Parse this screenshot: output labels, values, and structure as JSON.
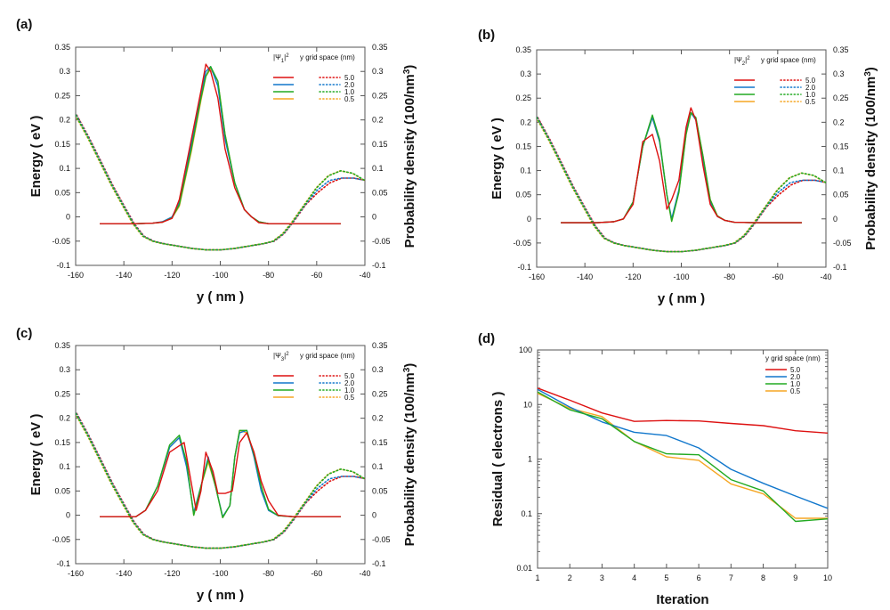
{
  "colors": {
    "red": "#dd1111",
    "blue": "#1177cc",
    "green": "#22aa22",
    "orange": "#f5a623",
    "axis": "#555555",
    "text": "#111111"
  },
  "chart_data": [
    {
      "panel": "(a)",
      "type": "line",
      "xlabel": "y ( nm )",
      "ylabel": "Energy ( eV )",
      "y2label_main": "Probability density (100/nm",
      "y2label_sup": "3",
      "y2label_end": ")",
      "xlim": [
        -160,
        -40
      ],
      "ylim": [
        -0.1,
        0.35
      ],
      "xticks": [
        -160,
        -140,
        -120,
        -100,
        -80,
        -60,
        -40
      ],
      "yticks": [
        -0.1,
        -0.05,
        0,
        0.05,
        0.1,
        0.15,
        0.2,
        0.25,
        0.3,
        0.35
      ],
      "ytick_labels": [
        "-0.1",
        "-0.05",
        "0",
        "0.05",
        "0.1",
        "0.15",
        "0.2",
        "0.25",
        "0.3",
        "0.35"
      ],
      "legend_psi_pre": "|Ψ",
      "legend_psi_sub": "1",
      "legend_psi_post": "|",
      "legend_psi_sup": "2",
      "legend_title": "y grid space (nm)",
      "legend_labels": [
        "5.0",
        "2.0",
        "1.0",
        "0.5"
      ],
      "series": [
        {
          "name": "5.0",
          "color": "red",
          "x": [
            -150,
            -135,
            -128,
            -124,
            -120,
            -117,
            -112,
            -108,
            -106,
            -104,
            -101,
            -98,
            -94,
            -90,
            -87,
            -84,
            -80,
            -70,
            -50
          ],
          "y": [
            -0.014,
            -0.014,
            -0.013,
            -0.011,
            -0.003,
            0.036,
            0.16,
            0.26,
            0.315,
            0.3,
            0.245,
            0.14,
            0.06,
            0.015,
            0.0,
            -0.012,
            -0.014,
            -0.014,
            -0.014
          ]
        },
        {
          "name": "2.0",
          "color": "blue",
          "x": [
            -150,
            -135,
            -128,
            -124,
            -120,
            -117,
            -112,
            -108,
            -106,
            -104,
            -101,
            -98,
            -94,
            -90,
            -87,
            -84,
            -80,
            -70,
            -50
          ],
          "y": [
            -0.014,
            -0.014,
            -0.013,
            -0.01,
            0.0,
            0.03,
            0.15,
            0.255,
            0.3,
            0.31,
            0.27,
            0.16,
            0.07,
            0.015,
            0.0,
            -0.01,
            -0.014,
            -0.014,
            -0.014
          ]
        },
        {
          "name": "1.0",
          "color": "green",
          "x": [
            -150,
            -135,
            -128,
            -124,
            -120,
            -117,
            -112,
            -108,
            -106,
            -104,
            -101,
            -98,
            -94,
            -90,
            -87,
            -84,
            -80,
            -70,
            -50
          ],
          "y": [
            -0.014,
            -0.014,
            -0.013,
            -0.011,
            -0.002,
            0.025,
            0.14,
            0.245,
            0.29,
            0.31,
            0.28,
            0.17,
            0.07,
            0.015,
            0.0,
            -0.01,
            -0.014,
            -0.014,
            -0.014
          ]
        },
        {
          "name": "0.5",
          "color": "orange",
          "x": [
            -150,
            -135,
            -128,
            -124,
            -120,
            -117,
            -112,
            -108,
            -106,
            -104,
            -101,
            -98,
            -94,
            -90,
            -87,
            -84,
            -80,
            -70,
            -50
          ],
          "y": [
            -0.014,
            -0.014,
            -0.013,
            -0.011,
            -0.002,
            0.022,
            0.135,
            0.24,
            0.29,
            0.305,
            0.28,
            0.17,
            0.07,
            0.015,
            0.0,
            -0.01,
            -0.014,
            -0.014,
            -0.014
          ]
        }
      ],
      "potential": {
        "x": [
          -160,
          -155,
          -150,
          -145,
          -140,
          -136,
          -132,
          -128,
          -124,
          -118,
          -112,
          -106,
          -100,
          -94,
          -88,
          -82,
          -78,
          -74,
          -70,
          -65,
          -60,
          -55,
          -50,
          -45,
          -40
        ],
        "y_main": [
          0.21,
          0.165,
          0.115,
          0.065,
          0.02,
          -0.015,
          -0.04,
          -0.05,
          -0.055,
          -0.06,
          -0.065,
          -0.068,
          -0.068,
          -0.065,
          -0.06,
          -0.055,
          -0.05,
          -0.035,
          -0.01,
          0.025,
          0.06,
          0.085,
          0.095,
          0.09,
          0.075
        ],
        "y_blue_end": [
          0.055,
          0.075,
          0.08,
          0.08,
          0.075
        ],
        "y_red_end": [
          0.05,
          0.07,
          0.08,
          0.08,
          0.075
        ]
      }
    },
    {
      "panel": "(b)",
      "type": "line",
      "xlabel": "y ( nm )",
      "ylabel": "Energy ( eV )",
      "y2label_main": "Probability density (100/nm",
      "y2label_sup": "3",
      "y2label_end": ")",
      "xlim": [
        -160,
        -40
      ],
      "ylim": [
        -0.1,
        0.35
      ],
      "xticks": [
        -160,
        -140,
        -120,
        -100,
        -80,
        -60,
        -40
      ],
      "yticks": [
        -0.1,
        -0.05,
        0,
        0.05,
        0.1,
        0.15,
        0.2,
        0.25,
        0.3,
        0.35
      ],
      "ytick_labels": [
        "-0.1",
        "-0.05",
        "0",
        "0.05",
        "0.1",
        "0.15",
        "0.2",
        "0.25",
        "0.3",
        "0.35"
      ],
      "legend_psi_pre": "|Ψ",
      "legend_psi_sub": "2",
      "legend_psi_post": "|",
      "legend_psi_sup": "2",
      "legend_title": "y grid space (nm)",
      "legend_labels": [
        "5.0",
        "2.0",
        "1.0",
        "0.5"
      ],
      "series": [
        {
          "name": "5.0",
          "color": "red",
          "x": [
            -150,
            -135,
            -128,
            -124,
            -120,
            -116,
            -112,
            -109,
            -106,
            -104,
            -101,
            -98,
            -96,
            -94,
            -91,
            -88,
            -85,
            -82,
            -78,
            -70,
            -50
          ],
          "y": [
            -0.008,
            -0.008,
            -0.006,
            0.0,
            0.03,
            0.16,
            0.175,
            0.12,
            0.02,
            0.04,
            0.08,
            0.19,
            0.23,
            0.205,
            0.11,
            0.03,
            0.005,
            -0.003,
            -0.007,
            -0.008,
            -0.008
          ]
        },
        {
          "name": "2.0",
          "color": "blue",
          "x": [
            -150,
            -135,
            -128,
            -124,
            -120,
            -116,
            -112,
            -109,
            -106,
            -104,
            -101,
            -98,
            -96,
            -94,
            -91,
            -88,
            -85,
            -82,
            -78,
            -70,
            -50
          ],
          "y": [
            -0.008,
            -0.008,
            -0.006,
            0.0,
            0.035,
            0.15,
            0.21,
            0.16,
            0.05,
            0.0,
            0.06,
            0.18,
            0.22,
            0.205,
            0.12,
            0.035,
            0.005,
            -0.003,
            -0.007,
            -0.008,
            -0.008
          ]
        },
        {
          "name": "1.0",
          "color": "green",
          "x": [
            -150,
            -135,
            -128,
            -124,
            -120,
            -116,
            -112,
            -109,
            -106,
            -104,
            -101,
            -98,
            -96,
            -94,
            -91,
            -88,
            -85,
            -82,
            -78,
            -70,
            -50
          ],
          "y": [
            -0.008,
            -0.008,
            -0.006,
            0.0,
            0.035,
            0.15,
            0.215,
            0.165,
            0.05,
            -0.005,
            0.055,
            0.175,
            0.22,
            0.21,
            0.13,
            0.04,
            0.006,
            -0.003,
            -0.007,
            -0.008,
            -0.008
          ]
        },
        {
          "name": "0.5",
          "color": "orange",
          "x": [
            -150,
            -135,
            -128,
            -124,
            -120,
            -116,
            -112,
            -109,
            -106,
            -104,
            -101,
            -98,
            -96,
            -94,
            -91,
            -88,
            -85,
            -82,
            -78,
            -70,
            -50
          ],
          "y": [
            -0.008,
            -0.008,
            -0.006,
            0.0,
            0.035,
            0.15,
            0.21,
            0.16,
            0.05,
            -0.005,
            0.055,
            0.175,
            0.218,
            0.21,
            0.13,
            0.04,
            0.006,
            -0.003,
            -0.007,
            -0.008,
            -0.008
          ]
        }
      ],
      "potential": {
        "x": [
          -160,
          -155,
          -150,
          -145,
          -140,
          -136,
          -132,
          -128,
          -124,
          -118,
          -112,
          -106,
          -100,
          -94,
          -88,
          -82,
          -78,
          -74,
          -70,
          -65,
          -60,
          -55,
          -50,
          -45,
          -40
        ],
        "y_main": [
          0.21,
          0.165,
          0.115,
          0.065,
          0.02,
          -0.015,
          -0.04,
          -0.05,
          -0.055,
          -0.06,
          -0.065,
          -0.068,
          -0.068,
          -0.065,
          -0.06,
          -0.055,
          -0.05,
          -0.035,
          -0.01,
          0.025,
          0.06,
          0.085,
          0.095,
          0.09,
          0.075
        ],
        "y_blue_end": [
          0.055,
          0.075,
          0.08,
          0.08,
          0.075
        ],
        "y_red_end": [
          0.05,
          0.07,
          0.08,
          0.08,
          0.075
        ]
      }
    },
    {
      "panel": "(c)",
      "type": "line",
      "xlabel": "y ( nm )",
      "ylabel": "Energy ( eV )",
      "y2label_main": "Probability density (100/nm",
      "y2label_sup": "3",
      "y2label_end": ")",
      "xlim": [
        -160,
        -40
      ],
      "ylim": [
        -0.1,
        0.35
      ],
      "xticks": [
        -160,
        -140,
        -120,
        -100,
        -80,
        -60,
        -40
      ],
      "yticks": [
        -0.1,
        -0.05,
        0,
        0.05,
        0.1,
        0.15,
        0.2,
        0.25,
        0.3,
        0.35
      ],
      "ytick_labels": [
        "-0.1",
        "-0.05",
        "0",
        "0.05",
        "0.1",
        "0.15",
        "0.2",
        "0.25",
        "0.3",
        "0.35"
      ],
      "legend_psi_pre": "|Ψ",
      "legend_psi_sub": "3",
      "legend_psi_post": "|",
      "legend_psi_sup": "2",
      "legend_title": "y grid space (nm)",
      "legend_labels": [
        "5.0",
        "2.0",
        "1.0",
        "0.5"
      ],
      "series": [
        {
          "name": "5.0",
          "color": "red",
          "x": [
            -150,
            -135,
            -131,
            -126,
            -121,
            -115,
            -110,
            -108,
            -106,
            -103,
            -101,
            -98,
            -95,
            -92,
            -89,
            -86,
            -83,
            -80,
            -76,
            -70,
            -50
          ],
          "y": [
            -0.003,
            -0.003,
            0.01,
            0.05,
            0.13,
            0.15,
            0.01,
            0.05,
            0.13,
            0.09,
            0.045,
            0.045,
            0.05,
            0.15,
            0.17,
            0.13,
            0.07,
            0.03,
            0.0,
            -0.003,
            -0.003
          ]
        },
        {
          "name": "2.0",
          "color": "blue",
          "x": [
            -150,
            -135,
            -131,
            -126,
            -121,
            -117,
            -114,
            -111,
            -108,
            -105,
            -102,
            -99,
            -96,
            -94,
            -92,
            -89,
            -86,
            -83,
            -80,
            -76,
            -70,
            -50
          ],
          "y": [
            -0.003,
            -0.003,
            0.01,
            0.06,
            0.14,
            0.16,
            0.1,
            0.005,
            0.06,
            0.12,
            0.06,
            -0.003,
            0.02,
            0.12,
            0.17,
            0.175,
            0.12,
            0.05,
            0.01,
            -0.001,
            -0.003,
            -0.003
          ]
        },
        {
          "name": "1.0",
          "color": "green",
          "x": [
            -150,
            -135,
            -131,
            -126,
            -121,
            -117,
            -114,
            -111,
            -108,
            -105,
            -102,
            -99,
            -96,
            -94,
            -92,
            -89,
            -86,
            -83,
            -80,
            -76,
            -70,
            -50
          ],
          "y": [
            -0.003,
            -0.003,
            0.01,
            0.06,
            0.145,
            0.165,
            0.11,
            0.0,
            0.06,
            0.115,
            0.06,
            -0.005,
            0.02,
            0.12,
            0.175,
            0.175,
            0.125,
            0.06,
            0.012,
            -0.001,
            -0.003,
            -0.003
          ]
        },
        {
          "name": "0.5",
          "color": "orange",
          "x": [
            -150,
            -135,
            -131,
            -126,
            -121,
            -117,
            -114,
            -111,
            -108,
            -105,
            -102,
            -99,
            -96,
            -94,
            -92,
            -89,
            -86,
            -83,
            -80,
            -76,
            -70,
            -50
          ],
          "y": [
            -0.003,
            -0.003,
            0.01,
            0.06,
            0.14,
            0.16,
            0.11,
            0.0,
            0.06,
            0.11,
            0.06,
            -0.005,
            0.02,
            0.12,
            0.175,
            0.17,
            0.125,
            0.06,
            0.012,
            -0.001,
            -0.003,
            -0.003
          ]
        }
      ],
      "potential": {
        "x": [
          -160,
          -155,
          -150,
          -145,
          -140,
          -136,
          -132,
          -128,
          -124,
          -118,
          -112,
          -106,
          -100,
          -94,
          -88,
          -82,
          -78,
          -74,
          -70,
          -65,
          -60,
          -55,
          -50,
          -45,
          -40
        ],
        "y_main": [
          0.21,
          0.165,
          0.115,
          0.065,
          0.02,
          -0.015,
          -0.04,
          -0.05,
          -0.055,
          -0.06,
          -0.065,
          -0.068,
          -0.068,
          -0.065,
          -0.06,
          -0.055,
          -0.05,
          -0.035,
          -0.01,
          0.025,
          0.06,
          0.085,
          0.095,
          0.09,
          0.075
        ],
        "y_blue_end": [
          0.055,
          0.075,
          0.08,
          0.08,
          0.075
        ],
        "y_red_end": [
          0.05,
          0.07,
          0.08,
          0.08,
          0.075
        ]
      }
    },
    {
      "panel": "(d)",
      "type": "line",
      "scale": "log",
      "xlabel": "Iteration",
      "ylabel": "Residual ( electrons )",
      "xlim": [
        1,
        10
      ],
      "ylim": [
        0.01,
        100
      ],
      "xticks": [
        1,
        2,
        3,
        4,
        5,
        6,
        7,
        8,
        9,
        10
      ],
      "yticks": [
        0.01,
        0.1,
        1,
        10,
        100
      ],
      "ytick_labels": [
        "0.01",
        "0.1",
        "1",
        "10",
        "100"
      ],
      "legend_title": "y grid space (nm)",
      "legend_labels": [
        "5.0",
        "2.0",
        "1.0",
        "0.5"
      ],
      "series": [
        {
          "name": "5.0",
          "color": "red",
          "x": [
            1,
            2,
            3,
            4,
            5,
            6,
            7,
            8,
            9,
            10
          ],
          "y": [
            20,
            12,
            7,
            4.9,
            5.1,
            5.0,
            4.5,
            4.1,
            3.3,
            3.0
          ]
        },
        {
          "name": "2.0",
          "color": "blue",
          "x": [
            1,
            2,
            3,
            4,
            5,
            6,
            7,
            8,
            9,
            10
          ],
          "y": [
            19,
            9,
            4.8,
            3.1,
            2.7,
            1.6,
            0.65,
            0.36,
            0.21,
            0.125
          ]
        },
        {
          "name": "1.0",
          "color": "green",
          "x": [
            1,
            2,
            3,
            4,
            5,
            6,
            7,
            8,
            9,
            10
          ],
          "y": [
            17,
            8,
            5.5,
            2.1,
            1.25,
            1.2,
            0.42,
            0.26,
            0.072,
            0.08
          ]
        },
        {
          "name": "0.5",
          "color": "orange",
          "x": [
            1,
            2,
            3,
            4,
            5,
            6,
            7,
            8,
            9,
            10
          ],
          "y": [
            16,
            8.5,
            6,
            2.1,
            1.1,
            0.95,
            0.35,
            0.23,
            0.082,
            0.082
          ]
        }
      ]
    }
  ]
}
